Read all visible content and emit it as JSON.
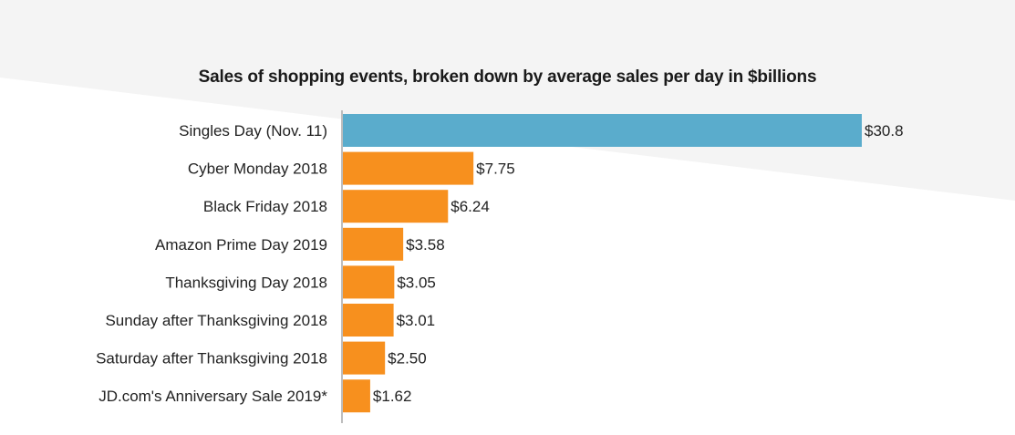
{
  "colors": {
    "highlight": "#5aaccc",
    "default": "#f7901e",
    "background_band": "#f4f4f4",
    "axis": "#bdbdbd"
  },
  "chart_data": {
    "type": "bar",
    "orientation": "horizontal",
    "title": "Sales of shopping events, broken down by average  sales per  day in $billions",
    "xlabel": "",
    "ylabel": "",
    "categories": [
      "Singles Day (Nov. 11)",
      "Cyber Monday 2018",
      "Black Friday 2018",
      "Amazon Prime Day 2019",
      "Thanksgiving Day 2018",
      "Sunday after Thanksgiving 2018",
      "Saturday after Thanksgiving 2018",
      "JD.com's Anniversary Sale 2019*"
    ],
    "values": [
      30.8,
      7.75,
      6.24,
      3.58,
      3.05,
      3.01,
      2.5,
      1.62
    ],
    "value_labels": [
      "$30.8",
      "$7.75",
      "$6.24",
      "$3.58",
      "$3.05",
      "$3.01",
      "$2.50",
      "$1.62"
    ],
    "highlight_index": 0,
    "xlim": [
      0,
      30.8
    ],
    "grid": false,
    "legend": "none"
  }
}
